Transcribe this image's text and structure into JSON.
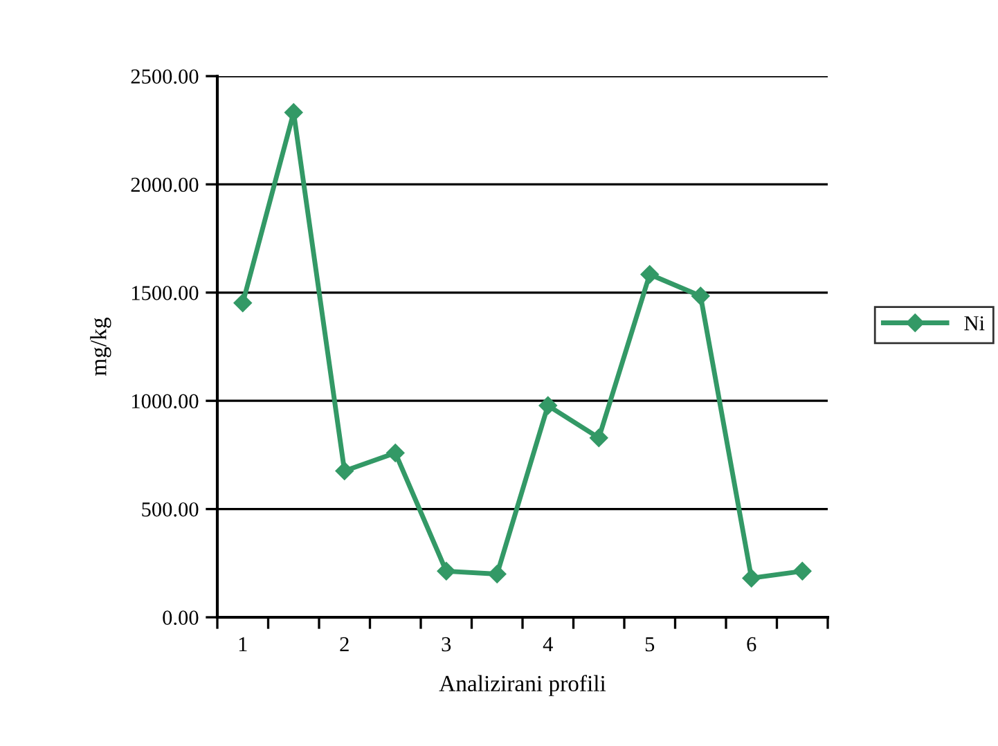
{
  "chart_data": {
    "type": "line",
    "xlabel": "Analizirani profili",
    "ylabel": "mg/kg",
    "categories": [
      "1",
      null,
      "2",
      null,
      "3",
      null,
      "4",
      null,
      "5",
      null,
      "6",
      null
    ],
    "series": [
      {
        "name": "Ni",
        "color": "#339966",
        "values": [
          1452,
          2332,
          676,
          759,
          213,
          200,
          978,
          829,
          1584,
          1484,
          181,
          213
        ]
      }
    ],
    "ylim": [
      0,
      2500
    ],
    "yticks": [
      {
        "value": 0,
        "label": "0.00"
      },
      {
        "value": 500,
        "label": "500.00"
      },
      {
        "value": 1000,
        "label": "1000.00"
      },
      {
        "value": 1500,
        "label": "1500.00"
      },
      {
        "value": 2000,
        "label": "2000.00"
      },
      {
        "value": 2500,
        "label": "2500.00"
      }
    ],
    "grid": "y",
    "legend": "right",
    "marker": "diamond",
    "line_style": "solid"
  }
}
